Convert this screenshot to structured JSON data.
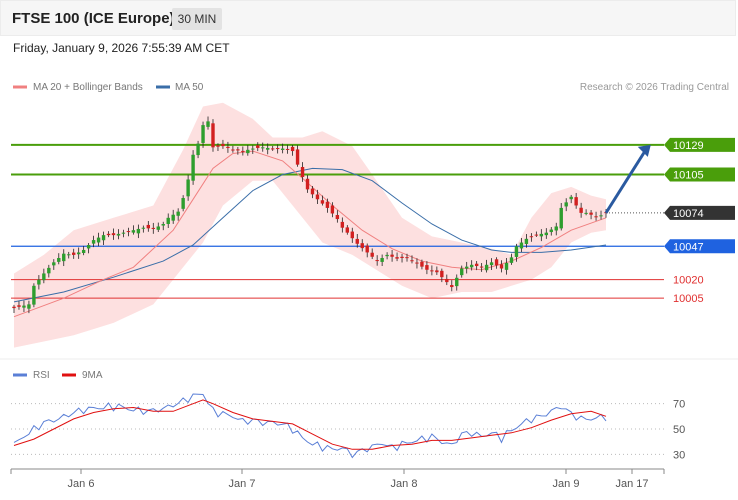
{
  "header": {
    "title": "FTSE 100 (ICE Europe)",
    "timeframe": "30 MIN",
    "datetime": "Friday, January 9, 2026 7:55:39 AM CET"
  },
  "legend": {
    "ma20_label": "MA 20 + Bollinger Bands",
    "ma50_label": "MA 50",
    "copyright": "Research © 2026 Trading Central",
    "rsi_label": "RSI",
    "ma9_label": "9MA"
  },
  "colors": {
    "bull": "#2e9e2e",
    "bear": "#d22020",
    "ma20": "#f08080",
    "ma50": "#3a6ea8",
    "band_fill": "#fde0e0",
    "resistance": "#4a9e0b",
    "pivot": "#1f62e0",
    "support": "#e03030",
    "current": "#333333",
    "arrow": "#2a5aa0",
    "rsi": "#5a7fd6",
    "rsi_ma": "#e01010"
  },
  "chart_data": [
    {
      "type": "candlestick",
      "x_ticks": [
        "Jan 6",
        "Jan 7",
        "Jan 8",
        "Jan 9",
        "Jan 17"
      ],
      "y_range": [
        9955,
        10175
      ],
      "levels": [
        {
          "value": 10129,
          "label": "10129",
          "kind": "resistance"
        },
        {
          "value": 10105,
          "label": "10105",
          "kind": "resistance"
        },
        {
          "value": 10074,
          "label": "10074",
          "kind": "current"
        },
        {
          "value": 10047,
          "label": "10047",
          "kind": "pivot"
        },
        {
          "value": 10020,
          "label": "10020",
          "kind": "support"
        },
        {
          "value": 10005,
          "label": "10005",
          "kind": "support"
        }
      ],
      "close_path": [
        [
          0,
          9997
        ],
        [
          2,
          9999
        ],
        [
          3,
          10000
        ],
        [
          4,
          10015
        ],
        [
          6,
          10025
        ],
        [
          8,
          10034
        ],
        [
          10,
          10041
        ],
        [
          12,
          10040
        ],
        [
          14,
          10044
        ],
        [
          16,
          10052
        ],
        [
          18,
          10056
        ],
        [
          20,
          10056
        ],
        [
          22,
          10058
        ],
        [
          24,
          10060
        ],
        [
          26,
          10062
        ],
        [
          28,
          10061
        ],
        [
          30,
          10065
        ],
        [
          31,
          10070
        ],
        [
          33,
          10075
        ],
        [
          34,
          10086
        ],
        [
          35,
          10101
        ],
        [
          36,
          10121
        ],
        [
          37,
          10130
        ],
        [
          38,
          10145
        ],
        [
          39,
          10148
        ],
        [
          40,
          10127
        ],
        [
          42,
          10128
        ],
        [
          44,
          10125
        ],
        [
          46,
          10124
        ],
        [
          48,
          10126
        ],
        [
          50,
          10127
        ],
        [
          52,
          10126
        ],
        [
          54,
          10126
        ],
        [
          56,
          10124
        ],
        [
          57,
          10113
        ],
        [
          58,
          10103
        ],
        [
          59,
          10093
        ],
        [
          61,
          10085
        ],
        [
          63,
          10078
        ],
        [
          65,
          10069
        ],
        [
          66,
          10062
        ],
        [
          67,
          10058
        ],
        [
          69,
          10049
        ],
        [
          71,
          10042
        ],
        [
          73,
          10035
        ],
        [
          75,
          10040
        ],
        [
          77,
          10037
        ],
        [
          79,
          10038
        ],
        [
          81,
          10033
        ],
        [
          83,
          10028
        ],
        [
          85,
          10026
        ],
        [
          87,
          10018
        ],
        [
          88,
          10014
        ],
        [
          90,
          10029
        ],
        [
          92,
          10032
        ],
        [
          94,
          10030
        ],
        [
          96,
          10034
        ],
        [
          98,
          10029
        ],
        [
          100,
          10038
        ],
        [
          101,
          10047
        ],
        [
          103,
          10053
        ],
        [
          105,
          10056
        ],
        [
          107,
          10058
        ],
        [
          109,
          10063
        ],
        [
          110,
          10078
        ],
        [
          112,
          10087
        ],
        [
          113,
          10080
        ],
        [
          114,
          10074
        ],
        [
          115,
          10074
        ],
        [
          117,
          10071
        ],
        [
          118,
          10072
        ],
        [
          119,
          10074
        ]
      ],
      "ma20": [
        [
          0,
          9990
        ],
        [
          10,
          10005
        ],
        [
          18,
          10020
        ],
        [
          24,
          10030
        ],
        [
          32,
          10060
        ],
        [
          36,
          10085
        ],
        [
          40,
          10110
        ],
        [
          44,
          10122
        ],
        [
          48,
          10124
        ],
        [
          54,
          10116
        ],
        [
          58,
          10102
        ],
        [
          64,
          10080
        ],
        [
          70,
          10060
        ],
        [
          76,
          10045
        ],
        [
          82,
          10035
        ],
        [
          88,
          10030
        ],
        [
          94,
          10028
        ],
        [
          100,
          10035
        ],
        [
          106,
          10046
        ],
        [
          112,
          10060
        ],
        [
          119,
          10070
        ]
      ],
      "upper_band": [
        [
          0,
          10025
        ],
        [
          6,
          10040
        ],
        [
          12,
          10060
        ],
        [
          20,
          10070
        ],
        [
          28,
          10080
        ],
        [
          34,
          10125
        ],
        [
          38,
          10160
        ],
        [
          42,
          10163
        ],
        [
          48,
          10150
        ],
        [
          52,
          10135
        ],
        [
          58,
          10135
        ],
        [
          62,
          10140
        ],
        [
          68,
          10128
        ],
        [
          72,
          10105
        ],
        [
          78,
          10070
        ],
        [
          84,
          10055
        ],
        [
          90,
          10050
        ],
        [
          96,
          10045
        ],
        [
          100,
          10040
        ],
        [
          104,
          10070
        ],
        [
          108,
          10090
        ],
        [
          112,
          10095
        ],
        [
          116,
          10088
        ],
        [
          119,
          10085
        ]
      ],
      "lower_band": [
        [
          0,
          9965
        ],
        [
          6,
          9970
        ],
        [
          12,
          9975
        ],
        [
          20,
          9985
        ],
        [
          28,
          10000
        ],
        [
          34,
          10030
        ],
        [
          38,
          10050
        ],
        [
          42,
          10080
        ],
        [
          48,
          10100
        ],
        [
          52,
          10100
        ],
        [
          58,
          10070
        ],
        [
          62,
          10050
        ],
        [
          68,
          10040
        ],
        [
          72,
          10030
        ],
        [
          78,
          10015
        ],
        [
          84,
          10005
        ],
        [
          90,
          10010
        ],
        [
          96,
          10010
        ],
        [
          100,
          10015
        ],
        [
          104,
          10020
        ],
        [
          108,
          10030
        ],
        [
          112,
          10050
        ],
        [
          116,
          10058
        ],
        [
          119,
          10060
        ]
      ],
      "ma50": [
        [
          0,
          10002
        ],
        [
          10,
          10010
        ],
        [
          20,
          10022
        ],
        [
          30,
          10035
        ],
        [
          36,
          10048
        ],
        [
          42,
          10070
        ],
        [
          48,
          10092
        ],
        [
          54,
          10105
        ],
        [
          60,
          10110
        ],
        [
          66,
          10109
        ],
        [
          72,
          10100
        ],
        [
          78,
          10082
        ],
        [
          84,
          10065
        ],
        [
          90,
          10052
        ],
        [
          96,
          10044
        ],
        [
          100,
          10042
        ],
        [
          106,
          10042
        ],
        [
          112,
          10044
        ],
        [
          119,
          10048
        ]
      ],
      "projection": {
        "from": [
          119,
          10074
        ],
        "to": [
          128,
          10129
        ]
      }
    },
    {
      "type": "line",
      "title": "RSI",
      "y_ticks": [
        70,
        50,
        30
      ],
      "y_range": [
        20,
        80
      ],
      "rsi": [
        [
          0,
          38
        ],
        [
          3,
          47
        ],
        [
          6,
          55
        ],
        [
          9,
          58
        ],
        [
          12,
          63
        ],
        [
          15,
          66
        ],
        [
          18,
          67
        ],
        [
          21,
          68
        ],
        [
          24,
          65
        ],
        [
          27,
          64
        ],
        [
          30,
          66
        ],
        [
          32,
          69
        ],
        [
          34,
          72
        ],
        [
          36,
          76
        ],
        [
          38,
          78
        ],
        [
          40,
          64
        ],
        [
          42,
          62
        ],
        [
          44,
          60
        ],
        [
          46,
          56
        ],
        [
          48,
          57
        ],
        [
          50,
          55
        ],
        [
          52,
          55
        ],
        [
          54,
          54
        ],
        [
          56,
          50
        ],
        [
          58,
          43
        ],
        [
          60,
          38
        ],
        [
          62,
          36
        ],
        [
          64,
          34
        ],
        [
          66,
          35
        ],
        [
          68,
          30
        ],
        [
          70,
          33
        ],
        [
          72,
          36
        ],
        [
          74,
          39
        ],
        [
          76,
          35
        ],
        [
          78,
          38
        ],
        [
          80,
          40
        ],
        [
          82,
          42
        ],
        [
          84,
          44
        ],
        [
          86,
          40
        ],
        [
          88,
          37
        ],
        [
          90,
          46
        ],
        [
          92,
          47
        ],
        [
          94,
          44
        ],
        [
          96,
          47
        ],
        [
          98,
          43
        ],
        [
          100,
          49
        ],
        [
          102,
          54
        ],
        [
          104,
          58
        ],
        [
          106,
          60
        ],
        [
          108,
          64
        ],
        [
          110,
          68
        ],
        [
          112,
          62
        ],
        [
          114,
          58
        ],
        [
          116,
          58
        ],
        [
          119,
          60
        ]
      ],
      "ma9": [
        [
          0,
          37
        ],
        [
          4,
          42
        ],
        [
          8,
          50
        ],
        [
          12,
          58
        ],
        [
          16,
          63
        ],
        [
          20,
          66
        ],
        [
          24,
          67
        ],
        [
          28,
          64
        ],
        [
          32,
          64
        ],
        [
          36,
          70
        ],
        [
          38,
          73
        ],
        [
          40,
          70
        ],
        [
          44,
          63
        ],
        [
          48,
          58
        ],
        [
          52,
          56
        ],
        [
          56,
          54
        ],
        [
          60,
          46
        ],
        [
          64,
          38
        ],
        [
          68,
          34
        ],
        [
          72,
          34
        ],
        [
          76,
          37
        ],
        [
          80,
          38
        ],
        [
          84,
          41
        ],
        [
          88,
          41
        ],
        [
          92,
          43
        ],
        [
          96,
          45
        ],
        [
          100,
          47
        ],
        [
          104,
          51
        ],
        [
          108,
          57
        ],
        [
          112,
          62
        ],
        [
          116,
          64
        ],
        [
          119,
          60
        ]
      ]
    }
  ]
}
